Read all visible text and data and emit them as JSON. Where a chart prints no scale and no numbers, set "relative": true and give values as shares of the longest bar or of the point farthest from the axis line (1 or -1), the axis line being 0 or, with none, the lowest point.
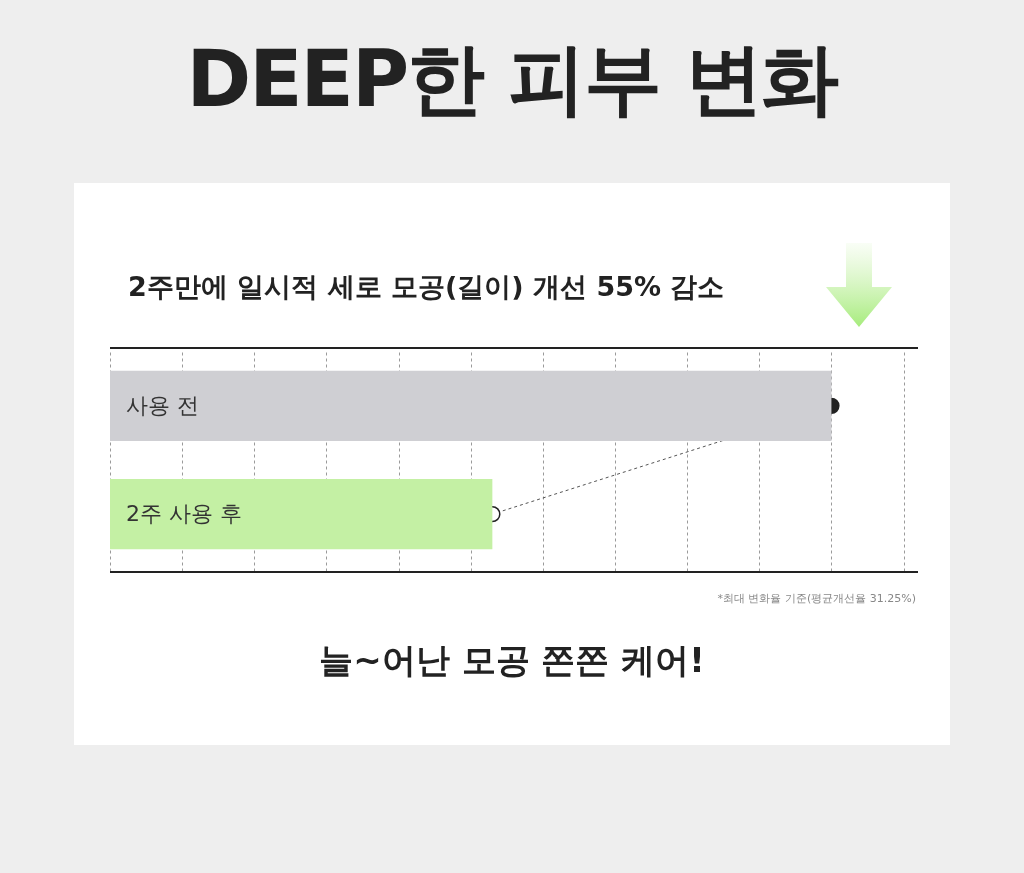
{
  "chart_data": {
    "type": "bar",
    "orientation": "horizontal",
    "relative": true,
    "title": "DEEP한 피부 변화",
    "subtitle": "2주만에 일시적 세로 모공(길이) 개선 55% 감소",
    "categories": [
      "사용 전",
      "2주 사용 후"
    ],
    "values": [
      1,
      0.53
    ],
    "colors": [
      "#cfcfd3",
      "#c4f0a4"
    ],
    "grid": "x",
    "marker": "circle",
    "line_style": "dashed",
    "annotations": [
      "*최대 변화율 기준(평균개선율 31.25%)",
      "늘~어난 모공 쫀쫀 케어!"
    ]
  }
}
